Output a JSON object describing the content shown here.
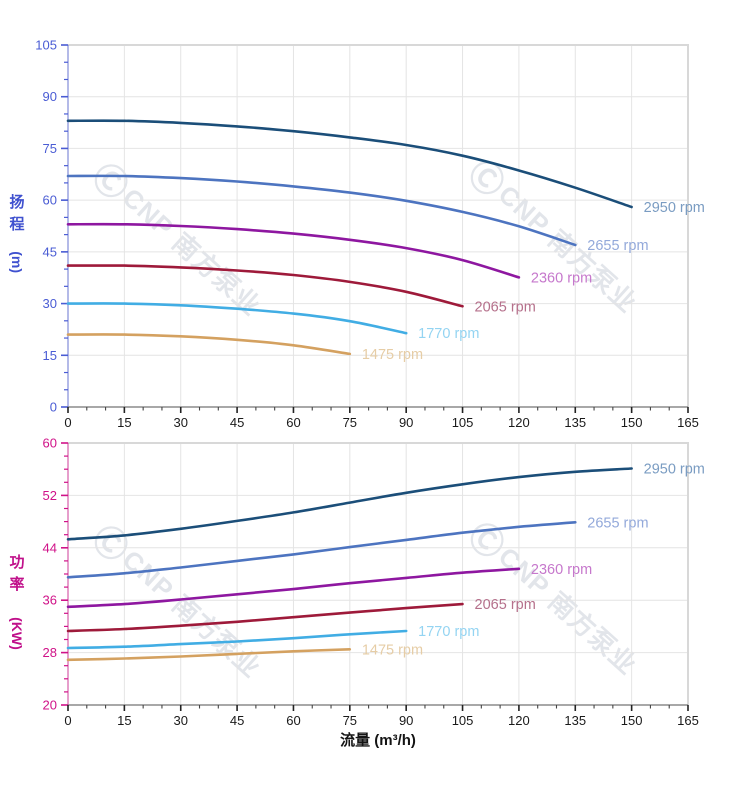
{
  "watermark": {
    "logo": "Ⓒ",
    "brand": "CNP",
    "cn_text": "南方泵业"
  },
  "chart_data": [
    {
      "type": "line",
      "title": "",
      "ylabel": "扬程 (m)",
      "ylabel_cn": "扬程",
      "ylabel_unit": "(m)",
      "xlabel": "流量 (m³/h)",
      "xlim": [
        0,
        165
      ],
      "ylim": [
        0,
        105
      ],
      "x_ticks": [
        0,
        15,
        30,
        45,
        60,
        75,
        90,
        105,
        120,
        135,
        150,
        165
      ],
      "y_ticks": [
        0,
        15,
        30,
        45,
        60,
        75,
        90,
        105
      ],
      "x_minor_step": 5,
      "y_minor_step": 5,
      "grid": true,
      "axis_color": "#4a5cd4",
      "x_label_color": "#1a1a1a",
      "legend_position": "end-of-line",
      "series": [
        {
          "name": "2950 rpm",
          "color": "#1b4e79",
          "label_color": "#7a9cc2",
          "x": [
            0,
            15,
            30,
            45,
            60,
            75,
            90,
            105,
            120,
            135,
            150
          ],
          "y": [
            83,
            83,
            82.4,
            81.4,
            80,
            78.2,
            76,
            72.9,
            68.6,
            63.6,
            58
          ]
        },
        {
          "name": "2655 rpm",
          "color": "#4d74c0",
          "label_color": "#93a9da",
          "x": [
            0,
            15,
            30,
            45,
            60,
            75,
            90,
            105,
            120,
            135
          ],
          "y": [
            67,
            67,
            66.4,
            65.4,
            64,
            62.2,
            59.8,
            56.6,
            52.4,
            47
          ]
        },
        {
          "name": "2360 rpm",
          "color": "#8e17a0",
          "label_color": "#c678cc",
          "x": [
            0,
            15,
            30,
            45,
            60,
            75,
            90,
            105,
            120
          ],
          "y": [
            53,
            53,
            52.5,
            51.6,
            50.3,
            48.5,
            46.1,
            42.6,
            37.6
          ]
        },
        {
          "name": "2065 rpm",
          "color": "#9e1a3a",
          "label_color": "#b5708b",
          "x": [
            0,
            15,
            30,
            45,
            60,
            75,
            90,
            105
          ],
          "y": [
            41,
            41,
            40.5,
            39.6,
            38.3,
            36.3,
            33.4,
            29.2
          ]
        },
        {
          "name": "1770 rpm",
          "color": "#41ade4",
          "label_color": "#94d4f2",
          "x": [
            0,
            15,
            30,
            45,
            60,
            75,
            90
          ],
          "y": [
            30,
            30,
            29.5,
            28.5,
            27.1,
            24.9,
            21.4
          ]
        },
        {
          "name": "1475 rpm",
          "color": "#d4a160",
          "label_color": "#e6cda6",
          "x": [
            0,
            15,
            30,
            45,
            60,
            75
          ],
          "y": [
            21,
            21,
            20.5,
            19.5,
            17.9,
            15.4
          ]
        }
      ]
    },
    {
      "type": "line",
      "title": "",
      "ylabel": "功率 (KW)",
      "ylabel_cn": "功率",
      "ylabel_unit": "(KW)",
      "xlabel": "流量 (m³/h)",
      "xlim": [
        0,
        165
      ],
      "ylim": [
        20,
        60
      ],
      "x_ticks": [
        0,
        15,
        30,
        45,
        60,
        75,
        90,
        105,
        120,
        135,
        150,
        165
      ],
      "y_ticks": [
        20,
        28,
        36,
        44,
        52,
        60
      ],
      "x_minor_step": 5,
      "y_minor_step": 2,
      "grid": true,
      "axis_color": "#d01288",
      "x_label_color": "#1a1a1a",
      "legend_position": "end-of-line",
      "series": [
        {
          "name": "2950 rpm",
          "color": "#1b4e79",
          "label_color": "#7a9cc2",
          "x": [
            0,
            15,
            30,
            45,
            60,
            75,
            90,
            105,
            120,
            135,
            150
          ],
          "y": [
            45.3,
            45.9,
            46.9,
            48.1,
            49.4,
            50.9,
            52.4,
            53.7,
            54.8,
            55.6,
            56.1
          ]
        },
        {
          "name": "2655 rpm",
          "color": "#4d74c0",
          "label_color": "#93a9da",
          "x": [
            0,
            15,
            30,
            45,
            60,
            75,
            90,
            105,
            120,
            135
          ],
          "y": [
            39.5,
            40.1,
            41,
            42,
            43,
            44.1,
            45.2,
            46.3,
            47.2,
            47.9
          ]
        },
        {
          "name": "2360 rpm",
          "color": "#8e17a0",
          "label_color": "#c678cc",
          "x": [
            0,
            15,
            30,
            45,
            60,
            75,
            90,
            105,
            120
          ],
          "y": [
            35,
            35.4,
            36.1,
            36.9,
            37.7,
            38.6,
            39.4,
            40.2,
            40.8
          ]
        },
        {
          "name": "2065 rpm",
          "color": "#9e1a3a",
          "label_color": "#b5708b",
          "x": [
            0,
            15,
            30,
            45,
            60,
            75,
            90,
            105
          ],
          "y": [
            31.3,
            31.6,
            32.1,
            32.7,
            33.4,
            34.1,
            34.8,
            35.4
          ]
        },
        {
          "name": "1770 rpm",
          "color": "#41ade4",
          "label_color": "#94d4f2",
          "x": [
            0,
            15,
            30,
            45,
            60,
            75,
            90
          ],
          "y": [
            28.7,
            28.9,
            29.3,
            29.7,
            30.2,
            30.8,
            31.3
          ]
        },
        {
          "name": "1475 rpm",
          "color": "#d4a160",
          "label_color": "#e6cda6",
          "x": [
            0,
            15,
            30,
            45,
            60,
            75
          ],
          "y": [
            26.9,
            27.1,
            27.4,
            27.8,
            28.2,
            28.5
          ]
        }
      ]
    }
  ]
}
